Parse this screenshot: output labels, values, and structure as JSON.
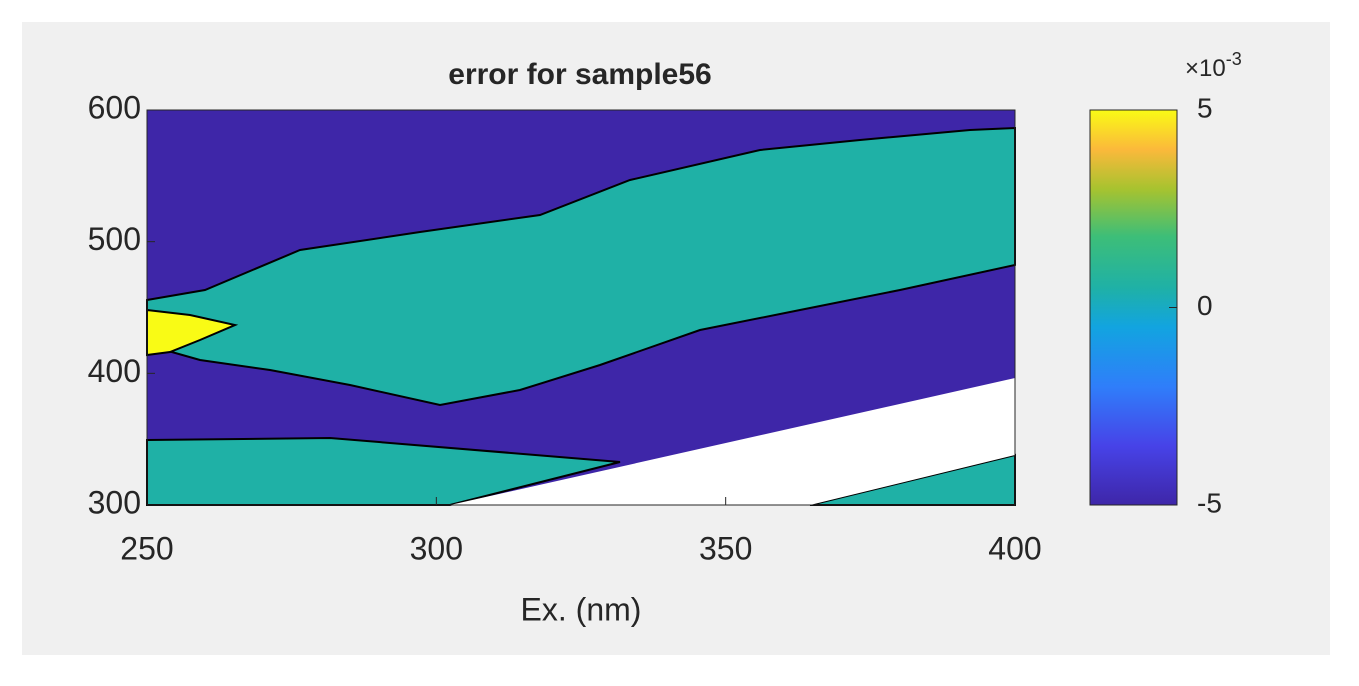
{
  "chart_data": {
    "type": "contour",
    "title": "error for sample56",
    "xlabel": "Ex. (nm)",
    "xlim": [
      250,
      400
    ],
    "xticks": [
      250,
      300,
      350,
      400
    ],
    "ylim": [
      300,
      600
    ],
    "yticks": [
      300,
      400,
      500,
      600
    ],
    "regions": [
      {
        "level": -5,
        "color": "#3e26a8"
      },
      {
        "level": 0,
        "color": "#1fb1a6"
      },
      {
        "level": 5,
        "color": "#f9fb15"
      }
    ],
    "clim": [
      -5,
      5
    ],
    "cticks": [
      -5,
      0,
      5
    ],
    "colorbar_multiplier": "×10",
    "colorbar_exponent": "-3"
  }
}
